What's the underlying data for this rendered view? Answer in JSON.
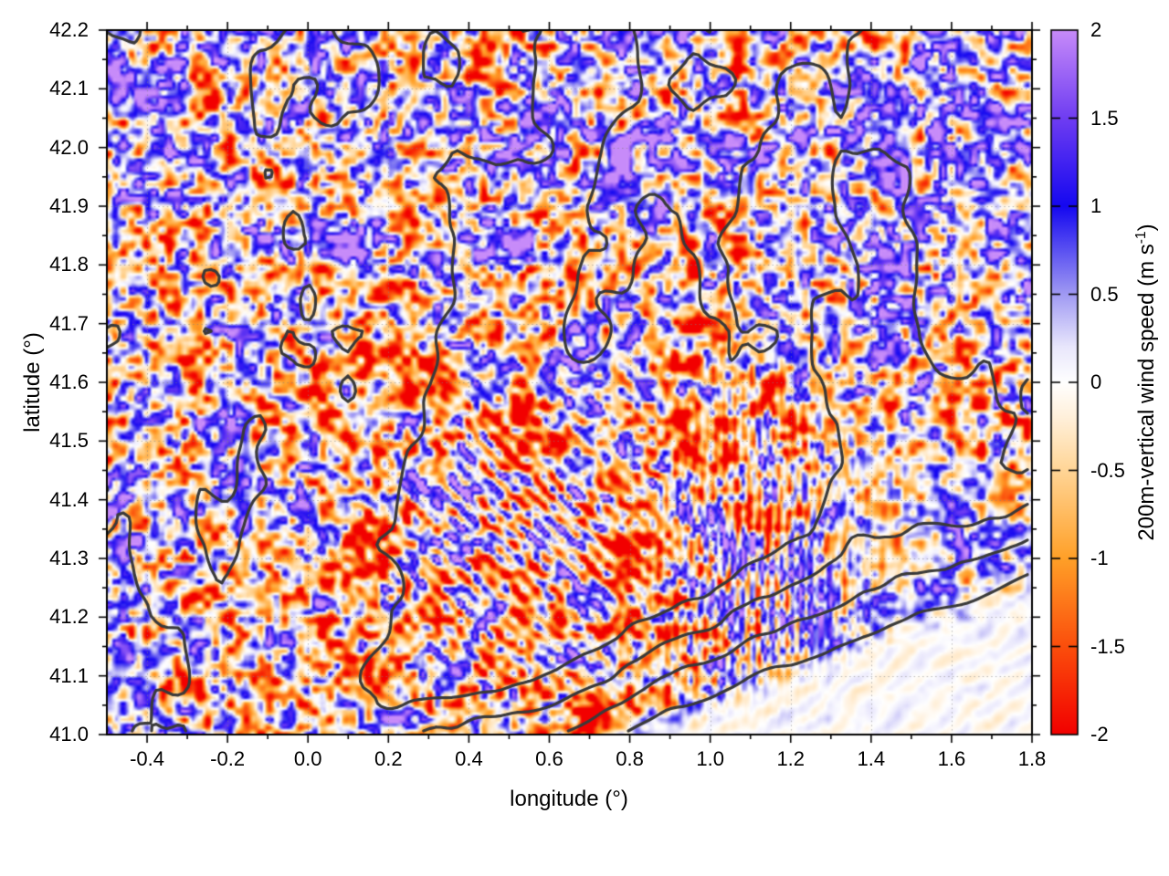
{
  "figure": {
    "background": "#ffffff",
    "text_color": "#000000"
  },
  "chart_data": {
    "type": "heatmap",
    "title": "",
    "xlabel": "longitude (°)",
    "ylabel": "latitude (°)",
    "xlim": [
      -0.5,
      1.8
    ],
    "ylim": [
      41.0,
      42.2
    ],
    "grid": {
      "visible": true,
      "style": "dotted",
      "color": "#828282"
    },
    "x_major_ticks": [
      -0.4,
      -0.2,
      0.0,
      0.2,
      0.4,
      0.6,
      0.8,
      1.0,
      1.2,
      1.4,
      1.6,
      1.8
    ],
    "x_tick_labels": [
      "-0.4",
      "-0.2",
      "0.0",
      "0.2",
      "0.4",
      "0.6",
      "0.8",
      "1.0",
      "1.2",
      "1.4",
      "1.6",
      "1.8"
    ],
    "x_minor_step": 0.1,
    "y_major_ticks": [
      42.2,
      42.1,
      42.0,
      41.9,
      41.8,
      41.7,
      41.6,
      41.5,
      41.4,
      41.3,
      41.2,
      41.1,
      41.0
    ],
    "y_tick_labels": [
      "42.2",
      "42.1",
      "42.0",
      "41.9",
      "41.8",
      "41.7",
      "41.6",
      "41.5",
      "41.4",
      "41.3",
      "41.2",
      "41.1",
      "41.0"
    ],
    "y_minor_step": 0.05,
    "colorbar": {
      "label_prefix": "200m-vertical wind speed (m s",
      "label_sup": "-1",
      "label_suffix": ")",
      "min": -2,
      "max": 2,
      "tick_values": [
        2,
        1.5,
        1,
        0.5,
        0,
        -0.5,
        -1,
        -1.5,
        -2
      ],
      "tick_labels": [
        "2",
        "1.5",
        "1",
        "0.5",
        "0",
        "-0.5",
        "-1",
        "-1.5",
        "-2"
      ],
      "palette": [
        {
          "v": -2.0,
          "color": "#f20000"
        },
        {
          "v": -1.5,
          "color": "#fb4e0c"
        },
        {
          "v": -1.0,
          "color": "#ffa028"
        },
        {
          "v": -0.5,
          "color": "#ffd596"
        },
        {
          "v": -0.2,
          "color": "#fff0da"
        },
        {
          "v": 0.0,
          "color": "#ffffff"
        },
        {
          "v": 0.2,
          "color": "#e9e7fc"
        },
        {
          "v": 0.5,
          "color": "#a09af3"
        },
        {
          "v": 1.0,
          "color": "#1508f0"
        },
        {
          "v": 1.5,
          "color": "#6f3df2"
        },
        {
          "v": 2.0,
          "color": "#c78bf9"
        }
      ]
    },
    "contours": {
      "description": "dark-gray terrain elevation contour lines over land, none over the sea",
      "color": "#3a3a3a",
      "width": 3.2,
      "levels": [
        0.14,
        0.32,
        0.5,
        0.68
      ]
    },
    "field": {
      "description": "Fine-grained alternating updraft (blue) / downdraft (orange) convective filaments over land with gravity-wave banding; calm pale Mediterranean Sea in the south-east corner bounded by a coastline running from about (0.95,41.0) to (1.8,41.23); strong downdraft (red) patches in mountain lee areas.",
      "seed": 7,
      "speckle_octaves": [
        {
          "scale": 2.8,
          "amp": 1.0
        },
        {
          "scale": 5.5,
          "amp": 0.8
        },
        {
          "scale": 11,
          "amp": 0.55
        },
        {
          "scale": 24,
          "amp": 0.4
        }
      ],
      "gain": 3.2,
      "coast": {
        "lon0": 0.95,
        "slope": 0.27,
        "wiggle": 0.022,
        "sea_attenuation": 0.07,
        "transition": 0.1
      },
      "bands": [
        {
          "cx": 0.55,
          "cy": 41.35,
          "sx": 0.45,
          "sy": 0.28,
          "angle_deg": 135,
          "wavelength": 5.0,
          "amp": 0.85
        },
        {
          "cx": 1.12,
          "cy": 41.28,
          "sx": 0.24,
          "sy": 0.3,
          "angle_deg": 0,
          "wavelength": 3.6,
          "amp": 1.1
        },
        {
          "cx": 1.45,
          "cy": 41.15,
          "sx": 0.35,
          "sy": 0.18,
          "angle_deg": 150,
          "wavelength": 6.0,
          "amp": 0.2
        }
      ],
      "bias_blobs": [
        {
          "cx": 0.65,
          "cy": 41.55,
          "sx": 0.35,
          "sy": 0.17,
          "amp": -0.55
        },
        {
          "cx": 0.1,
          "cy": 41.15,
          "sx": 0.3,
          "sy": 0.18,
          "amp": -0.35
        },
        {
          "cx": 0.5,
          "cy": 42.0,
          "sx": 0.5,
          "sy": 0.25,
          "amp": 0.3
        },
        {
          "cx": 1.5,
          "cy": 41.95,
          "sx": 0.4,
          "sy": 0.3,
          "amp": 0.25
        }
      ],
      "damp_blobs": [
        {
          "cx": 1.45,
          "cy": 41.33,
          "sx": 0.35,
          "sy": 0.18,
          "amp": 0.35
        }
      ],
      "hotspots": [
        {
          "cx": 0.8,
          "cy": 41.29,
          "sx": 0.07,
          "sy": 0.03,
          "amp": -2.6
        },
        {
          "cx": 0.72,
          "cy": 41.03,
          "sx": 0.06,
          "sy": 0.035,
          "amp": -2.4
        },
        {
          "cx": 1.13,
          "cy": 41.37,
          "sx": 0.05,
          "sy": 0.022,
          "amp": -1.7
        },
        {
          "cx": 1.77,
          "cy": 41.62,
          "sx": 0.04,
          "sy": 0.018,
          "amp": -2.2
        },
        {
          "cx": 0.42,
          "cy": 41.3,
          "sx": 0.025,
          "sy": 0.02,
          "amp": -1.4
        },
        {
          "cx": 0.55,
          "cy": 41.15,
          "sx": 0.04,
          "sy": 0.025,
          "amp": -1.2
        }
      ]
    }
  }
}
